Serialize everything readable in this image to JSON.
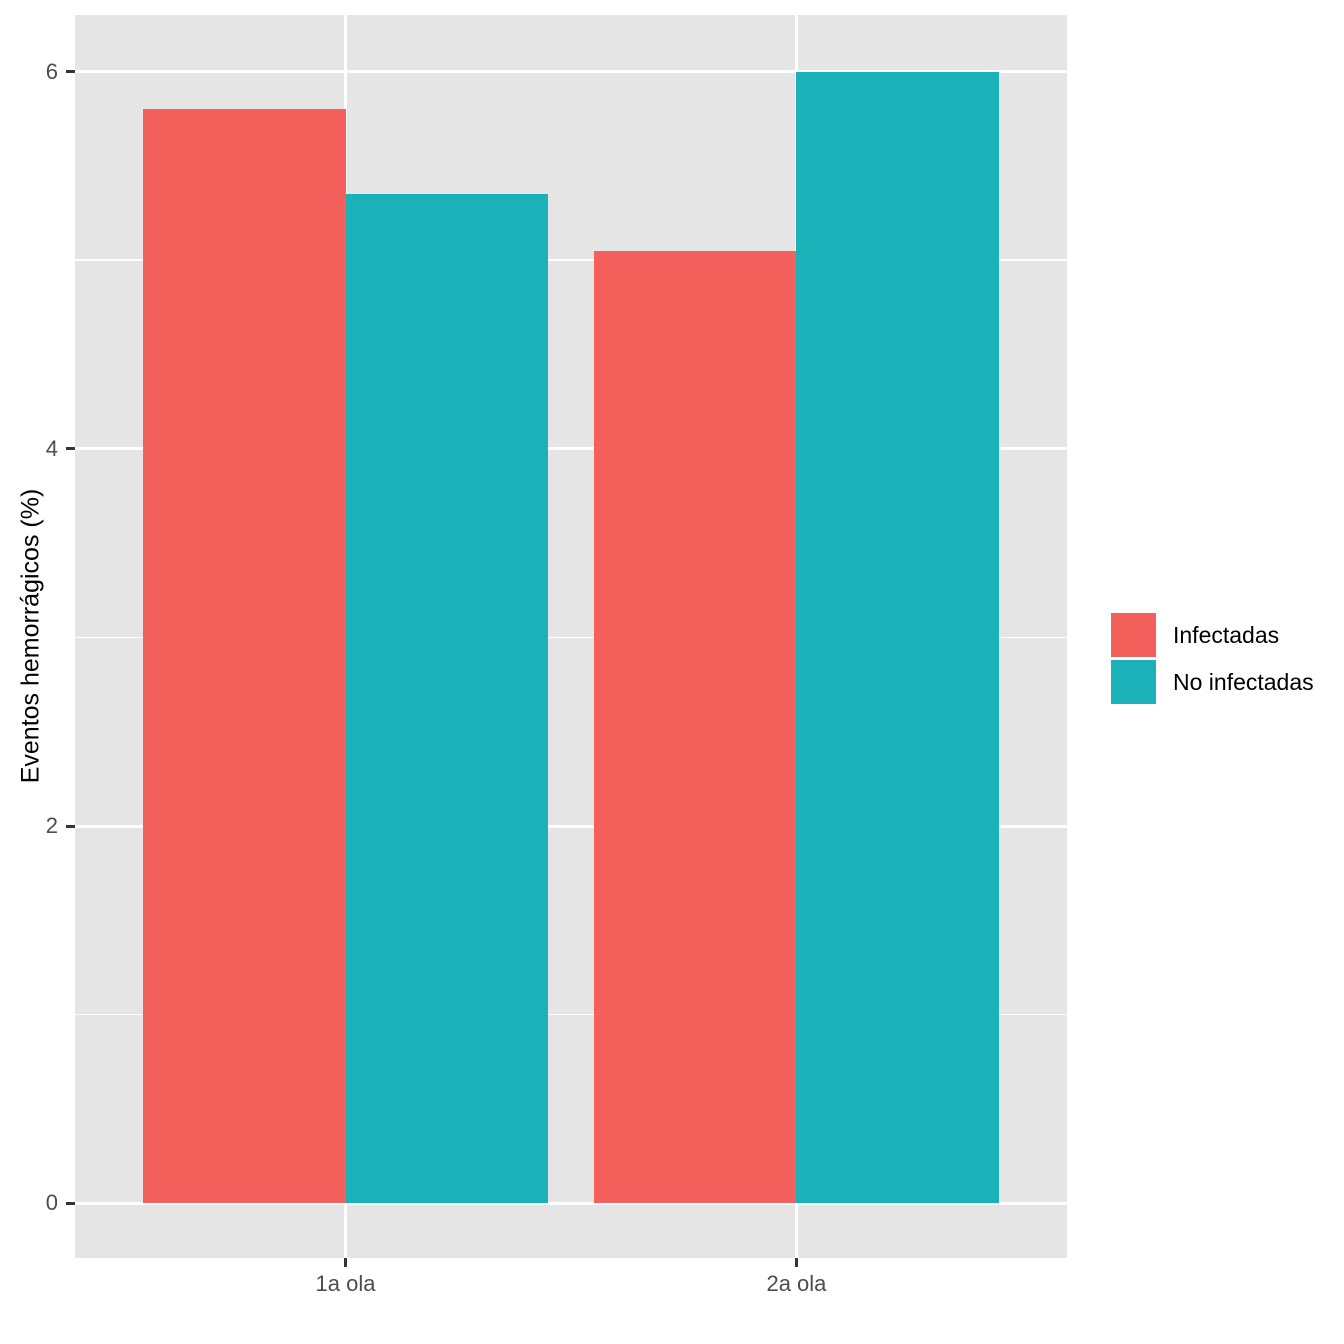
{
  "chart_data": {
    "type": "bar",
    "title": "",
    "categories": [
      "1a ola",
      "2a ola"
    ],
    "series": [
      {
        "name": "Infectadas",
        "color": "#F4605C",
        "values": [
          5.8,
          5.05
        ]
      },
      {
        "name": "No infectadas",
        "color": "#1AB2B8",
        "values": [
          5.35,
          6.0
        ]
      }
    ],
    "xlabel": "",
    "ylabel": "Eventos hemorrágicos (%)",
    "ylim": [
      -0.29,
      6.3
    ],
    "yticks": [
      0,
      2,
      4,
      6
    ],
    "yticks_minor": [
      1,
      3,
      5
    ],
    "grid": "on",
    "legend_position": "right",
    "bar_style": "dodged",
    "layout": {
      "panel_bg": "#E5E5E5",
      "grid_color": "#FFFFFF",
      "tick_color": "#333333",
      "tick_label_color": "#4D4D4D",
      "axis_title_color": "#000000",
      "legend_text_color": "#000000",
      "group_width_units": 0.9,
      "x_domain_pad": 0.6
    }
  }
}
